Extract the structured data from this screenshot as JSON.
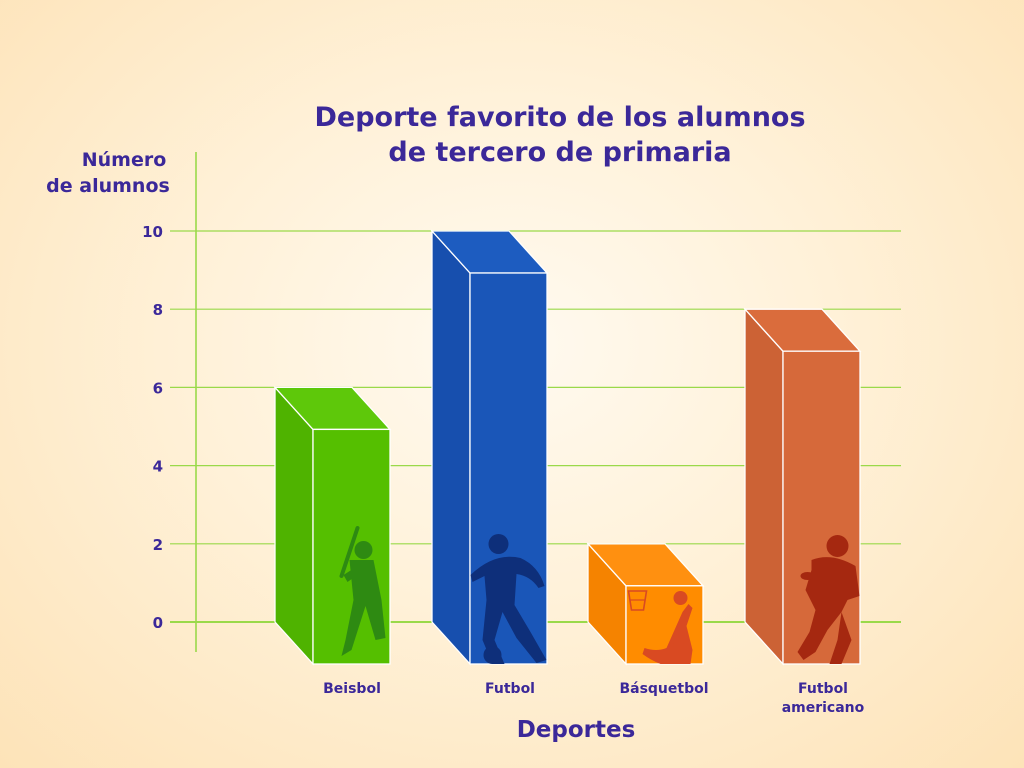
{
  "chart_data": {
    "type": "bar",
    "title_lines": [
      "Deporte favorito de los alumnos",
      "de tercero de primaria"
    ],
    "ylabel_lines": [
      "Número",
      "de alumnos"
    ],
    "xlabel": "Deportes",
    "categories": [
      [
        "Beisbol"
      ],
      [
        "Futbol"
      ],
      [
        "Básquetbol"
      ],
      [
        "Futbol",
        "americano"
      ]
    ],
    "values": [
      6,
      10,
      2,
      8
    ],
    "ylim": [
      0,
      10
    ],
    "yticks": [
      "0",
      "2",
      "4",
      "6",
      "8",
      "10"
    ],
    "grid": true,
    "colors": {
      "bars": [
        "#55bf00",
        "#1a56b8",
        "#ff8c00",
        "#d6693a"
      ],
      "bar_tops": [
        "#5ec80a",
        "#1d5cc0",
        "#ff9010",
        "#da6c3c"
      ],
      "bar_sides": [
        "#4fb300",
        "#174fae",
        "#f58300",
        "#cc6235"
      ],
      "silhouettes": [
        "#2e8a12",
        "#0e2f7a",
        "#d94a22",
        "#a52810"
      ],
      "grid": "#9ad94a",
      "text": "#3b2899"
    },
    "icons": [
      "baseball-player-icon",
      "soccer-player-icon",
      "basketball-player-icon",
      "football-player-icon"
    ]
  }
}
